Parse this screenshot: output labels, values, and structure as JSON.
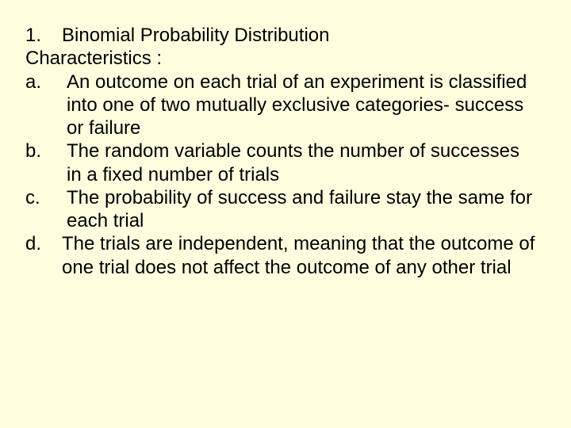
{
  "background_color": "#ffffe0",
  "text_color": "#000000",
  "font_family": "Arial",
  "font_size_pt": 18,
  "heading": {
    "number": "1.",
    "title": "Binomial Probability Distribution"
  },
  "subheading": "Characteristics :",
  "items": [
    {
      "marker": "a.",
      "text": "An outcome on each trial of an experiment is classified into one of two mutually exclusive categories- success or failure"
    },
    {
      "marker": "b.",
      "text": "The random variable counts the number of successes in a fixed number of trials"
    },
    {
      "marker": "c.",
      "text": "The probability of success and failure stay the same for each trial"
    },
    {
      "marker": "d.",
      "text": "The trials are independent, meaning that the outcome of one trial does not affect the outcome of any other trial"
    }
  ]
}
